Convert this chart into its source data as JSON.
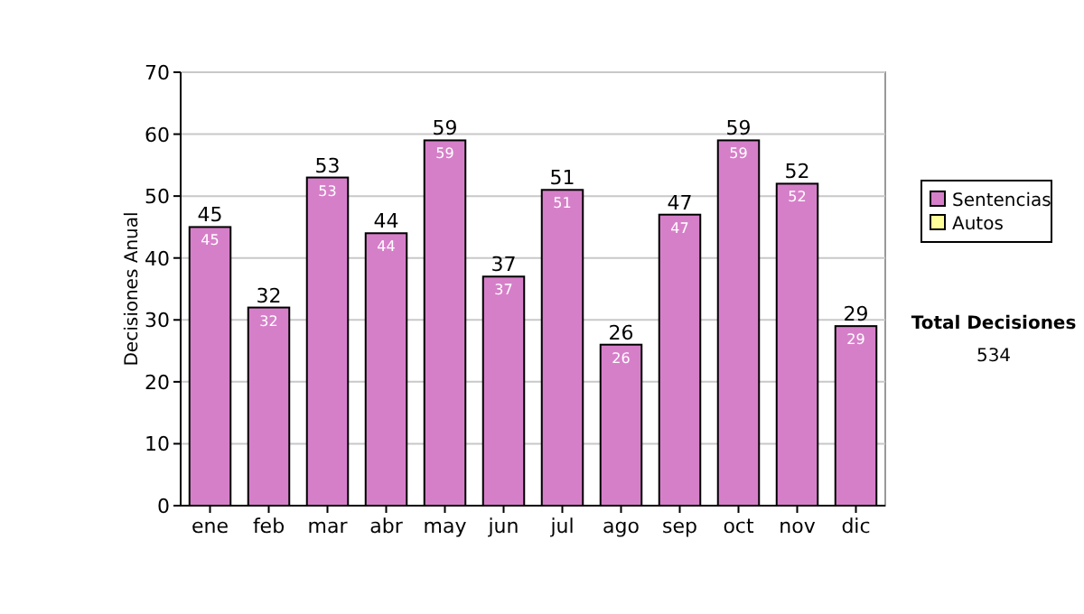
{
  "chart_data": {
    "type": "bar",
    "stacked": true,
    "ylabel": "Decisiones Anual",
    "categories": [
      "ene",
      "feb",
      "mar",
      "abr",
      "may",
      "jun",
      "jul",
      "ago",
      "sep",
      "oct",
      "nov",
      "dic"
    ],
    "series": [
      {
        "name": "Sentencias",
        "color": "#d67fc9",
        "values": [
          45,
          32,
          53,
          44,
          59,
          37,
          51,
          26,
          47,
          59,
          52,
          29
        ],
        "value_labels": [
          "45",
          "32",
          "53",
          "44",
          "59",
          "37",
          "51",
          "26",
          "47",
          "59",
          "52",
          "29"
        ]
      },
      {
        "name": "Autos",
        "color": "#ffff99",
        "values": [
          0,
          0,
          0,
          0,
          0,
          0,
          0,
          0,
          0,
          0,
          0,
          0
        ]
      }
    ],
    "ylim": [
      0,
      70
    ],
    "yticks": [
      0,
      10,
      20,
      30,
      40,
      50,
      60,
      70
    ],
    "grid": "y",
    "legend": "right",
    "totals": [
      "45",
      "32",
      "53",
      "44",
      "59",
      "37",
      "51",
      "26",
      "47",
      "59",
      "52",
      "29"
    ],
    "annotations": [
      "Total Decisiones",
      "534"
    ]
  }
}
